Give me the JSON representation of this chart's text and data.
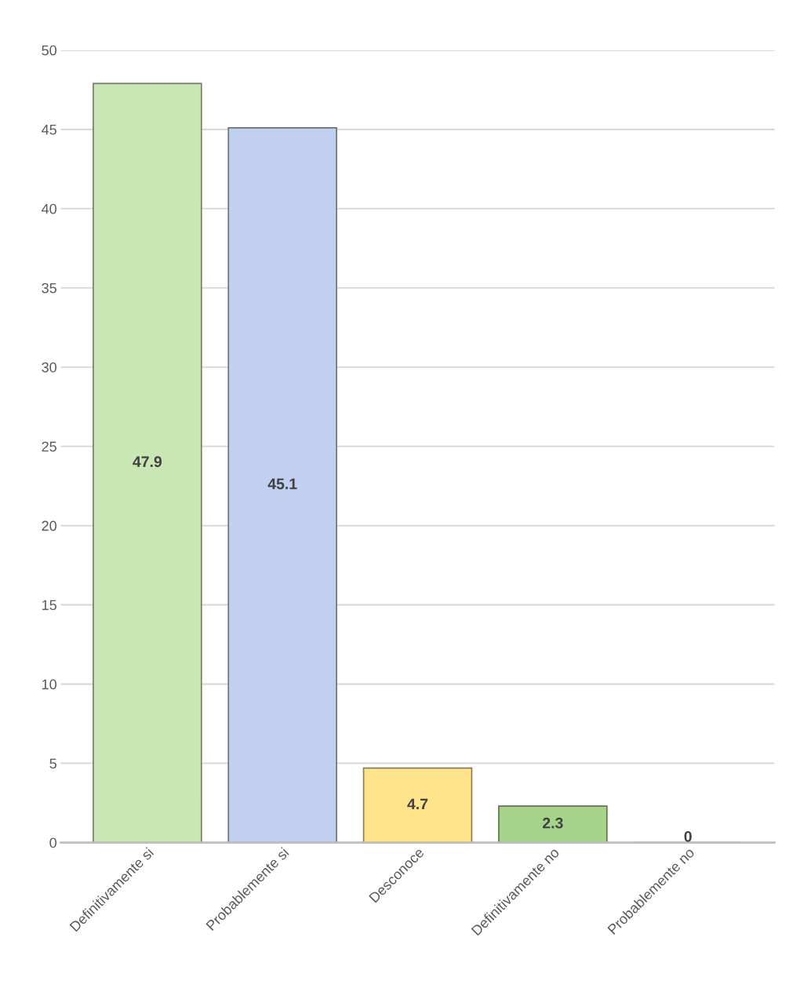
{
  "chart_data": {
    "type": "bar",
    "categories": [
      "Definitivamente si",
      "Probablemente si",
      "Desconoce",
      "Definitivamente no",
      "Probablemente no"
    ],
    "values": [
      47.9,
      45.1,
      4.7,
      2.3,
      0
    ],
    "colors": [
      "#c9e7b5",
      "#c0d0ee",
      "#ffe38a",
      "#a6d48a",
      "#8fa3c8"
    ],
    "ylim": [
      0,
      50
    ],
    "yticks": [
      0,
      5,
      10,
      15,
      20,
      25,
      30,
      35,
      40,
      45,
      50
    ],
    "grid": "y",
    "data_labels": true
  }
}
